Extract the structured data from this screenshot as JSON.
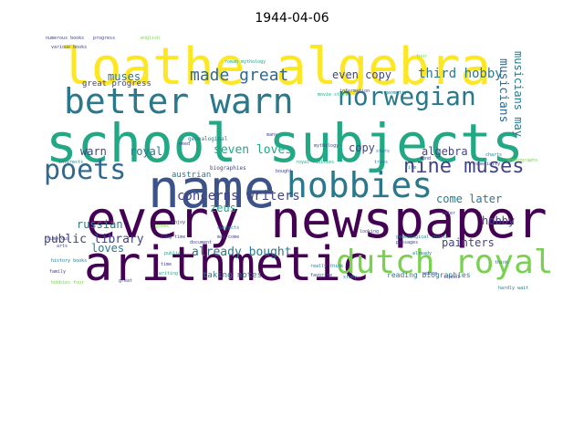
{
  "title": "1944-04-06",
  "palette": {
    "yellow": "#fde725",
    "lightgreen": "#7ad151",
    "green": "#22a884",
    "teal": "#2a788e",
    "blue": "#414487",
    "purple": "#440154"
  },
  "words": [
    {
      "text": "every newspaper",
      "weight": 1.0,
      "color": "#440154"
    },
    {
      "text": "school subjects",
      "weight": 0.98,
      "color": "#22a884"
    },
    {
      "text": "loathe algebra",
      "weight": 0.97,
      "color": "#fde725"
    },
    {
      "text": "name",
      "weight": 0.9,
      "color": "#3b528b"
    },
    {
      "text": "arithmetic",
      "weight": 0.85,
      "color": "#440154"
    },
    {
      "text": "better warn",
      "weight": 0.62,
      "color": "#2a788e"
    },
    {
      "text": "hobbies",
      "weight": 0.62,
      "color": "#2a788e"
    },
    {
      "text": "dutch royal",
      "weight": 0.6,
      "color": "#7ad151"
    },
    {
      "text": "poets",
      "weight": 0.5,
      "color": "#31688e"
    },
    {
      "text": "norwegian",
      "weight": 0.45,
      "color": "#2a788e"
    },
    {
      "text": "nine muses",
      "weight": 0.36,
      "color": "#414487"
    },
    {
      "text": "made great",
      "weight": 0.32,
      "color": "#31688e"
    },
    {
      "text": "concerns writers",
      "weight": 0.24,
      "color": "#414487"
    },
    {
      "text": "public library",
      "weight": 0.22,
      "color": "#414487"
    },
    {
      "text": "third hobby",
      "weight": 0.22,
      "color": "#2a788e"
    },
    {
      "text": "already bought",
      "weight": 0.22,
      "color": "#2a788e"
    },
    {
      "text": "musicians",
      "weight": 0.2,
      "color": "#31688e"
    },
    {
      "text": "musicians may",
      "weight": 0.2,
      "color": "#2a788e"
    },
    {
      "text": "seven loves",
      "weight": 0.2,
      "color": "#22a884"
    },
    {
      "text": "even copy",
      "weight": 0.2,
      "color": "#414487"
    },
    {
      "text": "russian",
      "weight": 0.2,
      "color": "#2a788e"
    },
    {
      "text": "warn",
      "weight": 0.19,
      "color": "#414487"
    },
    {
      "text": "royal",
      "weight": 0.19,
      "color": "#2a788e"
    },
    {
      "text": "muses",
      "weight": 0.19,
      "color": "#2a788e"
    },
    {
      "text": "copy",
      "weight": 0.19,
      "color": "#414487"
    },
    {
      "text": "algebra",
      "weight": 0.19,
      "color": "#414487"
    },
    {
      "text": "come later",
      "weight": 0.19,
      "color": "#2a788e"
    },
    {
      "text": "hobby",
      "weight": 0.19,
      "color": "#414487"
    },
    {
      "text": "painters",
      "weight": 0.19,
      "color": "#414487"
    },
    {
      "text": "loves",
      "weight": 0.19,
      "color": "#2a788e"
    },
    {
      "text": "zeus",
      "weight": 0.18,
      "color": "#22a884"
    },
    {
      "text": "taking notes",
      "weight": 0.14,
      "color": "#2a788e"
    },
    {
      "text": "reading biographies",
      "weight": 0.12,
      "color": "#2a788e"
    },
    {
      "text": "great progress",
      "weight": 0.11,
      "color": "#414487"
    },
    {
      "text": "austrian",
      "weight": 0.1,
      "color": "#2a788e"
    },
    {
      "text": "genealogical",
      "weight": 0.07,
      "color": "#2a788e"
    },
    {
      "text": "biographies",
      "weight": 0.06,
      "color": "#414487"
    },
    {
      "text": "royal families",
      "weight": 0.06,
      "color": "#22a884"
    },
    {
      "text": "mythology",
      "weight": 0.06,
      "color": "#414487"
    },
    {
      "text": "genealogical charts",
      "weight": 0.06,
      "color": "#2a788e"
    },
    {
      "text": "history books",
      "weight": 0.06,
      "color": "#2a788e"
    },
    {
      "text": "numerous books",
      "weight": 0.05,
      "color": "#414487"
    },
    {
      "text": "information",
      "weight": 0.05,
      "color": "#414487"
    },
    {
      "text": "movie stars",
      "weight": 0.05,
      "color": "#22a884"
    },
    {
      "text": "favorite",
      "weight": 0.05,
      "color": "#414487"
    },
    {
      "text": "geometry",
      "weight": 0.05,
      "color": "#2a788e"
    },
    {
      "text": "progress",
      "weight": 0.05,
      "color": "#414487"
    },
    {
      "text": "subjects",
      "weight": 0.05,
      "color": "#2a788e"
    },
    {
      "text": "document",
      "weight": 0.05,
      "color": "#414487"
    },
    {
      "text": "passages",
      "weight": 0.05,
      "color": "#414487"
    },
    {
      "text": "english",
      "weight": 0.05,
      "color": "#7ad151"
    },
    {
      "text": "bought",
      "weight": 0.05,
      "color": "#414487"
    },
    {
      "text": "really think",
      "weight": 0.05,
      "color": "#2a788e"
    },
    {
      "text": "hardly wait",
      "weight": 0.05,
      "color": "#2a788e"
    },
    {
      "text": "school",
      "weight": 0.05,
      "color": "#414487"
    },
    {
      "text": "already",
      "weight": 0.05,
      "color": "#2a788e"
    },
    {
      "text": "charts",
      "weight": 0.05,
      "color": "#2a788e"
    },
    {
      "text": "family",
      "weight": 0.05,
      "color": "#414487"
    },
    {
      "text": "enjoy",
      "weight": 0.05,
      "color": "#414487"
    },
    {
      "text": "interests",
      "weight": 0.05,
      "color": "#2a788e"
    },
    {
      "text": "greek",
      "weight": 0.05,
      "color": "#7ad151"
    },
    {
      "text": "roman mythology",
      "weight": 0.05,
      "color": "#22a884"
    },
    {
      "text": "long time",
      "weight": 0.05,
      "color": "#414487"
    },
    {
      "text": "may come",
      "weight": 0.05,
      "color": "#414487"
    },
    {
      "text": "adore",
      "weight": 0.05,
      "color": "#414487"
    },
    {
      "text": "especially",
      "weight": 0.05,
      "color": "#414487"
    },
    {
      "text": "photographs",
      "weight": 0.05,
      "color": "#7ad151"
    },
    {
      "text": "stars",
      "weight": 0.05,
      "color": "#2a788e"
    },
    {
      "text": "numerous",
      "weight": 0.05,
      "color": "#414487"
    },
    {
      "text": "various books",
      "weight": 0.05,
      "color": "#414487"
    },
    {
      "text": "public",
      "weight": 0.05,
      "color": "#22a884"
    },
    {
      "text": "arts",
      "weight": 0.05,
      "color": "#414487"
    },
    {
      "text": "think",
      "weight": 0.05,
      "color": "#2a788e"
    },
    {
      "text": "hobbies four",
      "weight": 0.05,
      "color": "#7ad151"
    },
    {
      "text": "looking",
      "weight": 0.05,
      "color": "#414487"
    },
    {
      "text": "film",
      "weight": 0.05,
      "color": "#2a788e"
    },
    {
      "text": "later",
      "weight": 0.05,
      "color": "#414487"
    },
    {
      "text": "great",
      "weight": 0.05,
      "color": "#414487"
    },
    {
      "text": "four",
      "weight": 0.05,
      "color": "#7ad151"
    },
    {
      "text": "fond",
      "weight": 0.05,
      "color": "#414487"
    },
    {
      "text": "writing",
      "weight": 0.05,
      "color": "#22a884"
    },
    {
      "text": "need",
      "weight": 0.05,
      "color": "#414487"
    },
    {
      "text": "many",
      "weight": 0.05,
      "color": "#414487"
    },
    {
      "text": "time",
      "weight": 0.05,
      "color": "#414487"
    },
    {
      "text": "study",
      "weight": 0.05,
      "color": "#2a788e"
    },
    {
      "text": "trees",
      "weight": 0.05,
      "color": "#2a788e"
    }
  ]
}
